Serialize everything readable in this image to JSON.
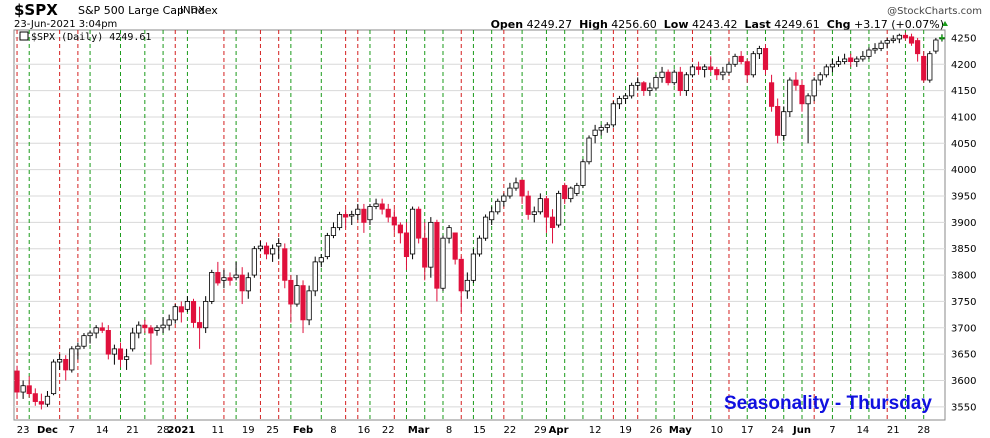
{
  "header": {
    "ticker": "$SPX",
    "company": "S&P 500 Large Cap Index",
    "exchange": "INDX",
    "datetime": "23-Jun-2021 3:04pm",
    "brand": "@StockCharts.com",
    "open_label": "Open",
    "open": "4249.27",
    "high_label": "High",
    "high": "4256.60",
    "low_label": "Low",
    "low": "4243.42",
    "last_label": "Last",
    "last": "4249.61",
    "chg_label": "Chg",
    "chg": "+3.17 (+0.07%)"
  },
  "colors": {
    "up": "#000000",
    "down": "#e0103c",
    "grid": "#d8d8d8",
    "green_line": "#1a9a1a",
    "red_line": "#d42020",
    "label_blue": "#1010e0"
  },
  "annotation": "Seasonality - Thursday",
  "chart_data": {
    "type": "candlestick",
    "series_label": "$SPX (Daily) 4249.61",
    "title": "$SPX S&P 500 Large Cap Index",
    "ylim": [
      3525,
      4265
    ],
    "yticks": [
      3550,
      3600,
      3650,
      3700,
      3750,
      3800,
      3850,
      3900,
      3950,
      4000,
      4050,
      4100,
      4150,
      4200,
      4250
    ],
    "xlabels": [
      {
        "label": "23",
        "index": 1,
        "bold": false
      },
      {
        "label": "Dec",
        "index": 5,
        "bold": true
      },
      {
        "label": "7",
        "index": 9,
        "bold": false
      },
      {
        "label": "14",
        "index": 14,
        "bold": false
      },
      {
        "label": "21",
        "index": 19,
        "bold": false
      },
      {
        "label": "28",
        "index": 24,
        "bold": false
      },
      {
        "label": "2021",
        "index": 27,
        "bold": true
      },
      {
        "label": "11",
        "index": 33,
        "bold": false
      },
      {
        "label": "19",
        "index": 38,
        "bold": false
      },
      {
        "label": "25",
        "index": 42,
        "bold": false
      },
      {
        "label": "Feb",
        "index": 47,
        "bold": true
      },
      {
        "label": "8",
        "index": 52,
        "bold": false
      },
      {
        "label": "16",
        "index": 57,
        "bold": false
      },
      {
        "label": "22",
        "index": 61,
        "bold": false
      },
      {
        "label": "Mar",
        "index": 66,
        "bold": true
      },
      {
        "label": "8",
        "index": 71,
        "bold": false
      },
      {
        "label": "15",
        "index": 76,
        "bold": false
      },
      {
        "label": "22",
        "index": 81,
        "bold": false
      },
      {
        "label": "29",
        "index": 86,
        "bold": false
      },
      {
        "label": "Apr",
        "index": 89,
        "bold": true
      },
      {
        "label": "12",
        "index": 95,
        "bold": false
      },
      {
        "label": "19",
        "index": 100,
        "bold": false
      },
      {
        "label": "26",
        "index": 105,
        "bold": false
      },
      {
        "label": "May",
        "index": 109,
        "bold": true
      },
      {
        "label": "10",
        "index": 115,
        "bold": false
      },
      {
        "label": "17",
        "index": 120,
        "bold": false
      },
      {
        "label": "24",
        "index": 125,
        "bold": false
      },
      {
        "label": "Jun",
        "index": 129,
        "bold": true
      },
      {
        "label": "7",
        "index": 134,
        "bold": false
      },
      {
        "label": "14",
        "index": 139,
        "bold": false
      },
      {
        "label": "21",
        "index": 144,
        "bold": false
      },
      {
        "label": "28",
        "index": 149,
        "bold": false
      }
    ],
    "candles": [
      [
        3618,
        3628,
        3565,
        3578
      ],
      [
        3578,
        3600,
        3565,
        3590
      ],
      [
        3590,
        3608,
        3568,
        3575
      ],
      [
        3575,
        3585,
        3552,
        3560
      ],
      [
        3560,
        3575,
        3545,
        3555
      ],
      [
        3555,
        3580,
        3550,
        3570
      ],
      [
        3575,
        3640,
        3572,
        3635
      ],
      [
        3635,
        3650,
        3620,
        3640
      ],
      [
        3640,
        3648,
        3600,
        3620
      ],
      [
        3620,
        3665,
        3615,
        3660
      ],
      [
        3660,
        3672,
        3640,
        3665
      ],
      [
        3665,
        3690,
        3660,
        3685
      ],
      [
        3685,
        3695,
        3670,
        3690
      ],
      [
        3690,
        3705,
        3680,
        3700
      ],
      [
        3700,
        3710,
        3690,
        3695
      ],
      [
        3695,
        3705,
        3640,
        3650
      ],
      [
        3650,
        3668,
        3630,
        3660
      ],
      [
        3660,
        3672,
        3625,
        3640
      ],
      [
        3640,
        3660,
        3620,
        3645
      ],
      [
        3660,
        3700,
        3655,
        3690
      ],
      [
        3690,
        3712,
        3680,
        3705
      ],
      [
        3705,
        3715,
        3690,
        3700
      ],
      [
        3700,
        3705,
        3630,
        3690
      ],
      [
        3695,
        3705,
        3685,
        3700
      ],
      [
        3700,
        3720,
        3690,
        3705
      ],
      [
        3705,
        3725,
        3695,
        3715
      ],
      [
        3715,
        3745,
        3708,
        3740
      ],
      [
        3740,
        3750,
        3710,
        3730
      ],
      [
        3735,
        3760,
        3730,
        3750
      ],
      [
        3750,
        3755,
        3700,
        3710
      ],
      [
        3710,
        3740,
        3660,
        3700
      ],
      [
        3700,
        3760,
        3690,
        3750
      ],
      [
        3750,
        3810,
        3745,
        3805
      ],
      [
        3805,
        3825,
        3780,
        3785
      ],
      [
        3790,
        3810,
        3775,
        3795
      ],
      [
        3795,
        3805,
        3780,
        3790
      ],
      [
        3795,
        3825,
        3790,
        3800
      ],
      [
        3800,
        3815,
        3745,
        3770
      ],
      [
        3770,
        3805,
        3755,
        3795
      ],
      [
        3800,
        3855,
        3795,
        3850
      ],
      [
        3850,
        3865,
        3845,
        3855
      ],
      [
        3855,
        3862,
        3830,
        3840
      ],
      [
        3840,
        3858,
        3825,
        3850
      ],
      [
        3855,
        3870,
        3830,
        3860
      ],
      [
        3850,
        3860,
        3775,
        3790
      ],
      [
        3790,
        3800,
        3710,
        3745
      ],
      [
        3745,
        3800,
        3740,
        3780
      ],
      [
        3780,
        3790,
        3690,
        3715
      ],
      [
        3715,
        3780,
        3705,
        3770
      ],
      [
        3770,
        3835,
        3760,
        3825
      ],
      [
        3825,
        3840,
        3815,
        3833
      ],
      [
        3835,
        3880,
        3830,
        3875
      ],
      [
        3875,
        3900,
        3870,
        3890
      ],
      [
        3890,
        3920,
        3885,
        3915
      ],
      [
        3915,
        3925,
        3890,
        3910
      ],
      [
        3912,
        3922,
        3895,
        3915
      ],
      [
        3915,
        3935,
        3905,
        3925
      ],
      [
        3925,
        3935,
        3880,
        3900
      ],
      [
        3905,
        3935,
        3895,
        3930
      ],
      [
        3930,
        3945,
        3925,
        3935
      ],
      [
        3935,
        3945,
        3915,
        3925
      ],
      [
        3925,
        3935,
        3900,
        3910
      ],
      [
        3910,
        3925,
        3880,
        3895
      ],
      [
        3895,
        3900,
        3860,
        3880
      ],
      [
        3880,
        3900,
        3810,
        3835
      ],
      [
        3840,
        3930,
        3830,
        3925
      ],
      [
        3925,
        3930,
        3860,
        3870
      ],
      [
        3870,
        3900,
        3790,
        3815
      ],
      [
        3815,
        3910,
        3795,
        3900
      ],
      [
        3900,
        3905,
        3750,
        3775
      ],
      [
        3775,
        3875,
        3770,
        3870
      ],
      [
        3870,
        3895,
        3860,
        3890
      ],
      [
        3880,
        3880,
        3820,
        3830
      ],
      [
        3830,
        3835,
        3730,
        3770
      ],
      [
        3770,
        3805,
        3755,
        3790
      ],
      [
        3790,
        3850,
        3785,
        3840
      ],
      [
        3840,
        3875,
        3835,
        3870
      ],
      [
        3870,
        3915,
        3865,
        3910
      ],
      [
        3905,
        3930,
        3895,
        3920
      ],
      [
        3920,
        3945,
        3915,
        3940
      ],
      [
        3940,
        3955,
        3930,
        3950
      ],
      [
        3950,
        3975,
        3945,
        3965
      ],
      [
        3965,
        3985,
        3960,
        3975
      ],
      [
        3980,
        3980,
        3935,
        3950
      ],
      [
        3950,
        3960,
        3905,
        3915
      ],
      [
        3915,
        3930,
        3900,
        3920
      ],
      [
        3920,
        3955,
        3915,
        3945
      ],
      [
        3945,
        3950,
        3880,
        3910
      ],
      [
        3910,
        3925,
        3860,
        3890
      ],
      [
        3895,
        3960,
        3890,
        3955
      ],
      [
        3970,
        3975,
        3935,
        3945
      ],
      [
        3945,
        3968,
        3938,
        3965
      ],
      [
        3955,
        3975,
        3950,
        3970
      ],
      [
        3970,
        4020,
        3965,
        4015
      ],
      [
        4015,
        4065,
        4010,
        4060
      ],
      [
        4065,
        4085,
        4050,
        4075
      ],
      [
        4075,
        4085,
        4065,
        4080
      ],
      [
        4080,
        4090,
        4070,
        4085
      ],
      [
        4085,
        4130,
        4080,
        4125
      ],
      [
        4125,
        4140,
        4115,
        4135
      ],
      [
        4135,
        4145,
        4125,
        4140
      ],
      [
        4140,
        4165,
        4135,
        4160
      ],
      [
        4160,
        4175,
        4150,
        4165
      ],
      [
        4165,
        4168,
        4140,
        4150
      ],
      [
        4150,
        4165,
        4140,
        4155
      ],
      [
        4155,
        4180,
        4150,
        4175
      ],
      [
        4175,
        4195,
        4165,
        4185
      ],
      [
        4185,
        4190,
        4160,
        4165
      ],
      [
        4165,
        4190,
        4160,
        4185
      ],
      [
        4185,
        4195,
        4140,
        4150
      ],
      [
        4150,
        4185,
        4140,
        4180
      ],
      [
        4180,
        4200,
        4175,
        4195
      ],
      [
        4195,
        4205,
        4180,
        4190
      ],
      [
        4190,
        4200,
        4175,
        4195
      ],
      [
        4195,
        4215,
        4185,
        4190
      ],
      [
        4190,
        4195,
        4170,
        4180
      ],
      [
        4180,
        4195,
        4170,
        4185
      ],
      [
        4185,
        4205,
        4180,
        4200
      ],
      [
        4200,
        4220,
        4195,
        4215
      ],
      [
        4215,
        4225,
        4200,
        4205
      ],
      [
        4205,
        4210,
        4165,
        4180
      ],
      [
        4180,
        4225,
        4175,
        4220
      ],
      [
        4220,
        4235,
        4210,
        4230
      ],
      [
        4230,
        4238,
        4180,
        4190
      ],
      [
        4165,
        4180,
        4110,
        4120
      ],
      [
        4120,
        4135,
        4050,
        4065
      ],
      [
        4065,
        4120,
        4055,
        4110
      ],
      [
        4110,
        4175,
        4100,
        4170
      ],
      [
        4170,
        4185,
        4150,
        4160
      ],
      [
        4160,
        4170,
        4110,
        4125
      ],
      [
        4125,
        4145,
        4050,
        4140
      ],
      [
        4140,
        4175,
        4130,
        4170
      ],
      [
        4170,
        4185,
        4160,
        4180
      ],
      [
        4180,
        4200,
        4175,
        4195
      ],
      [
        4195,
        4210,
        4185,
        4200
      ],
      [
        4200,
        4215,
        4195,
        4205
      ],
      [
        4205,
        4220,
        4200,
        4210
      ],
      [
        4212,
        4220,
        4195,
        4205
      ],
      [
        4205,
        4215,
        4195,
        4210
      ],
      [
        4210,
        4225,
        4205,
        4215
      ],
      [
        4215,
        4232,
        4210,
        4227
      ],
      [
        4227,
        4240,
        4220,
        4230
      ],
      [
        4230,
        4245,
        4225,
        4240
      ],
      [
        4240,
        4250,
        4230,
        4245
      ],
      [
        4245,
        4255,
        4240,
        4248
      ],
      [
        4248,
        4258,
        4240,
        4255
      ],
      [
        4255,
        4260,
        4245,
        4250
      ],
      [
        4252,
        4258,
        4235,
        4240
      ],
      [
        4245,
        4250,
        4205,
        4220
      ],
      [
        4215,
        4225,
        4165,
        4170
      ],
      [
        4170,
        4225,
        4165,
        4220
      ],
      [
        4225,
        4250,
        4220,
        4246
      ],
      [
        4249,
        4257,
        4243,
        4250
      ]
    ],
    "seasonal_lines": [
      {
        "index": 0,
        "color": "red"
      },
      {
        "index": 2,
        "color": "green"
      },
      {
        "index": 7,
        "color": "red"
      },
      {
        "index": 10,
        "color": "red"
      },
      {
        "index": 12,
        "color": "green"
      },
      {
        "index": 17,
        "color": "green"
      },
      {
        "index": 21,
        "color": "green"
      },
      {
        "index": 24,
        "color": "green"
      },
      {
        "index": 26,
        "color": "red"
      },
      {
        "index": 28,
        "color": "green"
      },
      {
        "index": 34,
        "color": "red"
      },
      {
        "index": 36,
        "color": "green"
      },
      {
        "index": 40,
        "color": "red"
      },
      {
        "index": 43,
        "color": "red"
      },
      {
        "index": 45,
        "color": "green"
      },
      {
        "index": 50,
        "color": "green"
      },
      {
        "index": 54,
        "color": "red"
      },
      {
        "index": 56,
        "color": "red"
      },
      {
        "index": 58,
        "color": "green"
      },
      {
        "index": 62,
        "color": "red"
      },
      {
        "index": 64,
        "color": "green"
      },
      {
        "index": 67,
        "color": "green"
      },
      {
        "index": 70,
        "color": "green"
      },
      {
        "index": 73,
        "color": "red"
      },
      {
        "index": 75,
        "color": "green"
      },
      {
        "index": 78,
        "color": "green"
      },
      {
        "index": 80,
        "color": "red"
      },
      {
        "index": 83,
        "color": "green"
      },
      {
        "index": 87,
        "color": "green"
      },
      {
        "index": 90,
        "color": "green"
      },
      {
        "index": 93,
        "color": "green"
      },
      {
        "index": 96,
        "color": "green"
      },
      {
        "index": 98,
        "color": "red"
      },
      {
        "index": 100,
        "color": "green"
      },
      {
        "index": 102,
        "color": "red"
      },
      {
        "index": 105,
        "color": "green"
      },
      {
        "index": 108,
        "color": "green"
      },
      {
        "index": 111,
        "color": "red"
      },
      {
        "index": 114,
        "color": "green"
      },
      {
        "index": 117,
        "color": "red"
      },
      {
        "index": 120,
        "color": "green"
      },
      {
        "index": 123,
        "color": "green"
      },
      {
        "index": 126,
        "color": "green"
      },
      {
        "index": 129,
        "color": "green"
      },
      {
        "index": 131,
        "color": "red"
      },
      {
        "index": 134,
        "color": "green"
      },
      {
        "index": 137,
        "color": "green"
      },
      {
        "index": 140,
        "color": "green"
      },
      {
        "index": 143,
        "color": "red"
      },
      {
        "index": 146,
        "color": "green"
      },
      {
        "index": 149,
        "color": "green"
      }
    ]
  }
}
